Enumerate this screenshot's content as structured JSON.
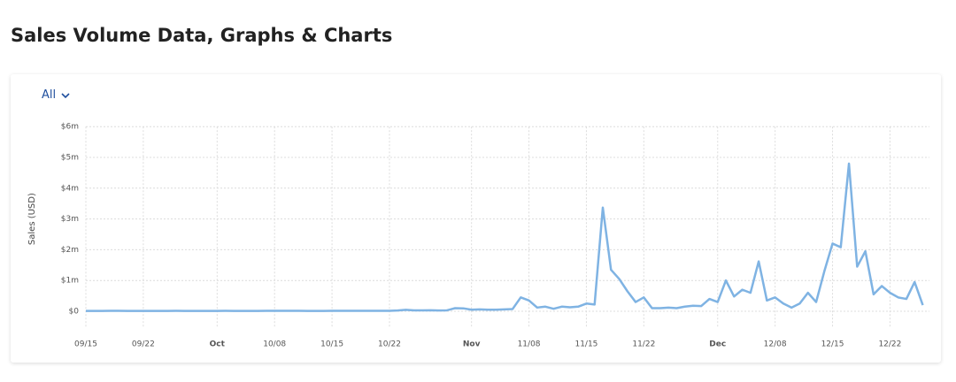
{
  "header": {
    "title": "Sales Volume Data, Graphs & Charts"
  },
  "filter": {
    "label": "All"
  },
  "chart_data": {
    "type": "line",
    "y_label": "Sales (USD)",
    "color": "#7fb3e3",
    "grid": true,
    "x": [
      "09/15",
      "09/16",
      "09/17",
      "09/18",
      "09/19",
      "09/20",
      "09/21",
      "09/22",
      "09/23",
      "09/24",
      "09/25",
      "09/26",
      "09/27",
      "09/28",
      "09/29",
      "09/30",
      "10/01",
      "10/02",
      "10/03",
      "10/04",
      "10/05",
      "10/06",
      "10/07",
      "10/08",
      "10/09",
      "10/10",
      "10/11",
      "10/12",
      "10/13",
      "10/14",
      "10/15",
      "10/16",
      "10/17",
      "10/18",
      "10/19",
      "10/20",
      "10/21",
      "10/22",
      "10/23",
      "10/24",
      "10/25",
      "10/26",
      "10/27",
      "10/28",
      "10/29",
      "10/30",
      "10/31",
      "11/01",
      "11/02",
      "11/03",
      "11/04",
      "11/05",
      "11/06",
      "11/07",
      "11/08",
      "11/09",
      "11/10",
      "11/11",
      "11/12",
      "11/13",
      "11/14",
      "11/15",
      "11/16",
      "11/17",
      "11/18",
      "11/19",
      "11/20",
      "11/21",
      "11/22",
      "11/23",
      "11/24",
      "11/25",
      "11/26",
      "11/27",
      "11/28",
      "11/29",
      "11/30",
      "12/01",
      "12/02",
      "12/03",
      "12/04",
      "12/05",
      "12/06",
      "12/07",
      "12/08",
      "12/09",
      "12/10",
      "12/11",
      "12/12",
      "12/13",
      "12/14",
      "12/15",
      "12/16",
      "12/17",
      "12/18",
      "12/19",
      "12/20",
      "12/21",
      "12/22",
      "12/23",
      "12/24",
      "12/25",
      "12/26"
    ],
    "values": [
      10000,
      10000,
      12000,
      15000,
      13000,
      11000,
      10000,
      10000,
      12000,
      11000,
      12000,
      13000,
      12000,
      11000,
      10000,
      10000,
      12000,
      13000,
      12000,
      11000,
      12000,
      12000,
      13000,
      14000,
      13000,
      15000,
      14000,
      12000,
      11000,
      12000,
      13000,
      14000,
      13000,
      15000,
      14000,
      16000,
      15000,
      14000,
      25000,
      45000,
      30000,
      28000,
      32000,
      25000,
      30000,
      100000,
      95000,
      50000,
      60000,
      50000,
      50000,
      60000,
      70000,
      450000,
      350000,
      120000,
      150000,
      80000,
      150000,
      130000,
      150000,
      250000,
      220000,
      3370000,
      1350000,
      1050000,
      650000,
      300000,
      450000,
      100000,
      100000,
      120000,
      100000,
      150000,
      180000,
      170000,
      400000,
      300000,
      1000000,
      480000,
      700000,
      600000,
      1620000,
      350000,
      450000,
      250000,
      120000,
      250000,
      600000,
      300000,
      1300000,
      2200000,
      2080000,
      4800000,
      1450000,
      1950000,
      550000,
      820000,
      600000,
      450000,
      400000,
      950000,
      200000
    ],
    "ylim": [
      0,
      6000000
    ],
    "yticks": [
      {
        "value": 0,
        "label": "$0"
      },
      {
        "value": 1000000,
        "label": "$1m"
      },
      {
        "value": 2000000,
        "label": "$2m"
      },
      {
        "value": 3000000,
        "label": "$3m"
      },
      {
        "value": 4000000,
        "label": "$4m"
      },
      {
        "value": 5000000,
        "label": "$5m"
      },
      {
        "value": 6000000,
        "label": "$6m"
      }
    ],
    "xticks": [
      "09/15",
      "09/22",
      {
        "value": "10/01",
        "label": "Oct"
      },
      "10/08",
      "10/15",
      "10/22",
      {
        "value": "11/01",
        "label": "Nov"
      },
      "11/08",
      "11/15",
      "11/22",
      {
        "value": "12/01",
        "label": "Dec"
      },
      "12/08",
      "12/15",
      "12/22"
    ]
  }
}
